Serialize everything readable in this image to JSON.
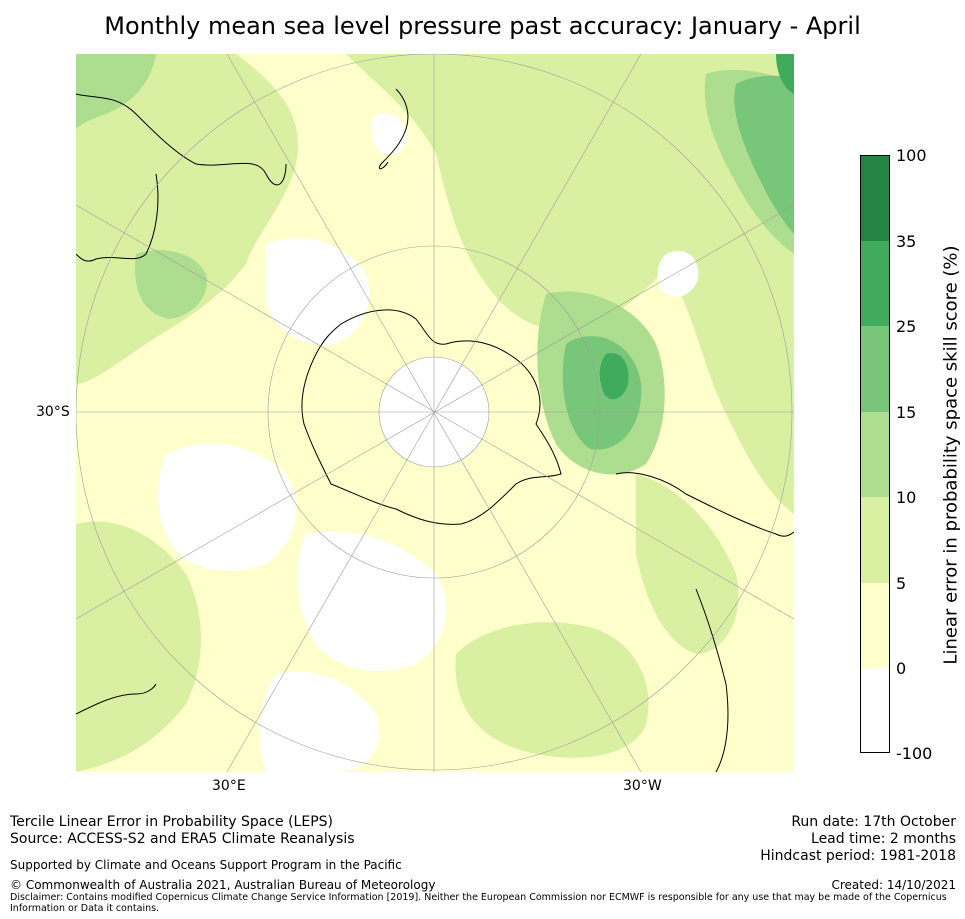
{
  "title": "Monthly mean sea level pressure past accuracy: January - April",
  "map": {
    "projection": "south-polar-stereographic",
    "labels": {
      "lat_30s": "30°S",
      "lon_30e": "30°E",
      "lon_30w": "30°W"
    },
    "colors": {
      "below_0": "#ffffff",
      "c0_5": "#ffffcc",
      "c5_10": "#d9f0a3",
      "c10_15": "#addd8e",
      "c15_25": "#78c679",
      "c25_35": "#41ab5d",
      "c35_100": "#238443",
      "coast": "#000000",
      "grid": "#9e9e9e"
    }
  },
  "colorbar": {
    "label": "Linear error in probability space skill score (%)",
    "ticks": [
      "100",
      "35",
      "25",
      "15",
      "10",
      "5",
      "0",
      "-100"
    ],
    "bins": [
      {
        "range": "35-100",
        "color": "#238443"
      },
      {
        "range": "25-35",
        "color": "#41ab5d"
      },
      {
        "range": "15-25",
        "color": "#78c679"
      },
      {
        "range": "10-15",
        "color": "#addd8e"
      },
      {
        "range": "5-10",
        "color": "#d9f0a3"
      },
      {
        "range": "0-5",
        "color": "#ffffcc"
      },
      {
        "range": "-100-0",
        "color": "#ffffff"
      }
    ]
  },
  "footer": {
    "line1": "Tercile Linear Error in Probability Space (LEPS)",
    "line2": "Source: ACCESS-S2 and ERA5 Climate Reanalysis",
    "supported": "Supported by Climate and Oceans Support Program in the Pacific",
    "copyright": "© Commonwealth of Australia 2021, Australian Bureau of Meteorology",
    "disclaimer1": "Disclaimer: Contains modified Copernicus Climate Change Service Information [2019]. Neither the European Commission nor ECMWF is responsible for any use that may be made of the Copernicus",
    "disclaimer2": "Information or Data it contains.",
    "run_date": "Run date: 17th October",
    "lead_time": "Lead time: 2 months",
    "hindcast": "Hindcast period: 1981-2018",
    "created": "Created: 14/10/2021"
  }
}
